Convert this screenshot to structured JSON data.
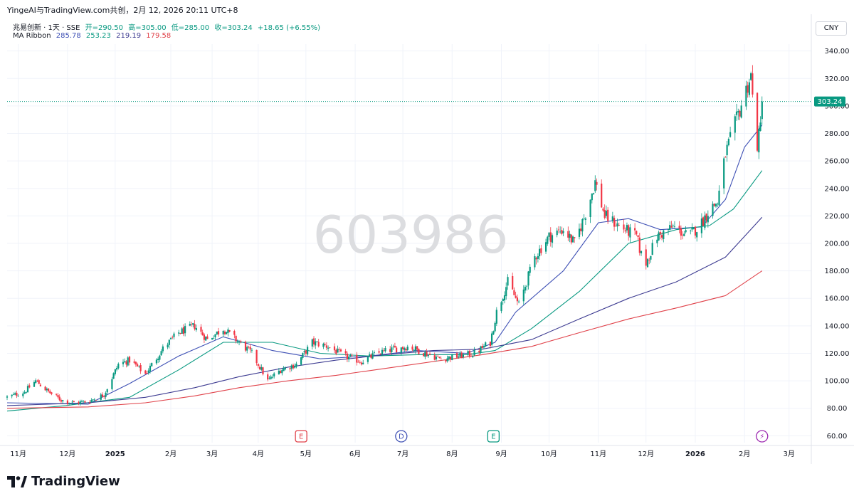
{
  "header": {
    "title": "YingeAI与TradingView.com共创，2月 12, 2026 20:11 UTC+8"
  },
  "symbol": {
    "name": "兆易创新 · 1天 · SSE",
    "open_label": "开=290.50",
    "high_label": "高=305.00",
    "low_label": "低=285.00",
    "close_label": "收=303.24",
    "change_label": "+18.65 (+6.55%)"
  },
  "ma_ribbon": {
    "label": "MA Ribbon",
    "values": [
      "285.78",
      "253.23",
      "219.19",
      "179.58"
    ],
    "colors": [
      "#3f51b5",
      "#089981",
      "#3d3b91",
      "#e0424a"
    ]
  },
  "currency": "CNY",
  "watermark": "603986",
  "price_tag": "303.24",
  "footer": {
    "brand": "TradingView"
  },
  "colors": {
    "up": "#089981",
    "down": "#f23645",
    "grid": "#f0f3fa",
    "tag": "#089981"
  },
  "event_markers": [
    {
      "letter": "E",
      "date": "2025-04-28",
      "color": "#e0424a",
      "shape": "square"
    },
    {
      "letter": "D",
      "date": "2025-06-30",
      "color": "#3f51b5",
      "shape": "circle"
    },
    {
      "letter": "E",
      "date": "2025-08-27",
      "color": "#089981",
      "shape": "square"
    },
    {
      "letter": "⚡",
      "date": "2026-02-12",
      "color": "#9c27b0",
      "shape": "circle"
    }
  ],
  "chart_data": {
    "type": "candlestick",
    "x_axis": {
      "start": "2024-10-25",
      "end": "2026-03-15",
      "tick_labels": [
        {
          "date": "2024-11-01",
          "label": "11月"
        },
        {
          "date": "2024-12-02",
          "label": "12月"
        },
        {
          "date": "2025-01-01",
          "label": "2025",
          "bold": true
        },
        {
          "date": "2025-02-05",
          "label": "2月"
        },
        {
          "date": "2025-03-03",
          "label": "3月"
        },
        {
          "date": "2025-04-01",
          "label": "4月"
        },
        {
          "date": "2025-05-01",
          "label": "5月"
        },
        {
          "date": "2025-06-01",
          "label": "6月"
        },
        {
          "date": "2025-07-01",
          "label": "7月"
        },
        {
          "date": "2025-08-01",
          "label": "8月"
        },
        {
          "date": "2025-09-01",
          "label": "9月"
        },
        {
          "date": "2025-10-01",
          "label": "10月"
        },
        {
          "date": "2025-11-01",
          "label": "11月"
        },
        {
          "date": "2025-12-01",
          "label": "12月"
        },
        {
          "date": "2026-01-01",
          "label": "2026",
          "bold": true
        },
        {
          "date": "2026-02-01",
          "label": "2月"
        },
        {
          "date": "2026-03-01",
          "label": "3月"
        }
      ]
    },
    "y_axis": {
      "min": 55,
      "max": 345,
      "ticks": [
        "60.00",
        "80.00",
        "100.00",
        "120.00",
        "140.00",
        "160.00",
        "180.00",
        "200.00",
        "220.00",
        "240.00",
        "260.00",
        "280.00",
        "300.00",
        "320.00",
        "340.00"
      ]
    },
    "current_price": 303.24,
    "close_series": [
      [
        "2024-10-25",
        88
      ],
      [
        "2024-11-05",
        92
      ],
      [
        "2024-11-12",
        100
      ],
      [
        "2024-11-20",
        92
      ],
      [
        "2024-11-28",
        86
      ],
      [
        "2024-12-05",
        84
      ],
      [
        "2024-12-15",
        85
      ],
      [
        "2024-12-25",
        90
      ],
      [
        "2025-01-03",
        112
      ],
      [
        "2025-01-10",
        115
      ],
      [
        "2025-01-20",
        105
      ],
      [
        "2025-02-01",
        125
      ],
      [
        "2025-02-10",
        135
      ],
      [
        "2025-02-20",
        140
      ],
      [
        "2025-02-28",
        130
      ],
      [
        "2025-03-10",
        138
      ],
      [
        "2025-03-20",
        128
      ],
      [
        "2025-03-28",
        120
      ],
      [
        "2025-04-07",
        100
      ],
      [
        "2025-04-15",
        108
      ],
      [
        "2025-04-25",
        112
      ],
      [
        "2025-05-05",
        128
      ],
      [
        "2025-05-15",
        125
      ],
      [
        "2025-05-25",
        118
      ],
      [
        "2025-06-05",
        114
      ],
      [
        "2025-06-15",
        120
      ],
      [
        "2025-06-25",
        123
      ],
      [
        "2025-07-05",
        125
      ],
      [
        "2025-07-15",
        120
      ],
      [
        "2025-07-25",
        116
      ],
      [
        "2025-08-05",
        118
      ],
      [
        "2025-08-15",
        120
      ],
      [
        "2025-08-25",
        128
      ],
      [
        "2025-08-29",
        150
      ],
      [
        "2025-09-05",
        172
      ],
      [
        "2025-09-12",
        155
      ],
      [
        "2025-09-22",
        190
      ],
      [
        "2025-10-01",
        205
      ],
      [
        "2025-10-10",
        210
      ],
      [
        "2025-10-17",
        200
      ],
      [
        "2025-10-25",
        225
      ],
      [
        "2025-10-30",
        245
      ],
      [
        "2025-11-05",
        220
      ],
      [
        "2025-11-15",
        212
      ],
      [
        "2025-11-25",
        205
      ],
      [
        "2025-11-30",
        183
      ],
      [
        "2025-12-08",
        205
      ],
      [
        "2025-12-18",
        212
      ],
      [
        "2025-12-28",
        205
      ],
      [
        "2026-01-05",
        215
      ],
      [
        "2026-01-10",
        225
      ],
      [
        "2026-01-15",
        230
      ],
      [
        "2026-01-20",
        265
      ],
      [
        "2026-01-27",
        290
      ],
      [
        "2026-02-02",
        312
      ],
      [
        "2026-02-05",
        322
      ],
      [
        "2026-02-07",
        290
      ],
      [
        "2026-02-09",
        272
      ],
      [
        "2026-02-10",
        278
      ],
      [
        "2026-02-11",
        285
      ],
      [
        "2026-02-12",
        303
      ]
    ],
    "ma_lines": [
      {
        "value_label": "285.78",
        "color": "#3f51b5",
        "points": [
          [
            "2024-10-25",
            84
          ],
          [
            "2024-12-15",
            83
          ],
          [
            "2025-01-10",
            98
          ],
          [
            "2025-02-10",
            118
          ],
          [
            "2025-03-10",
            132
          ],
          [
            "2025-04-10",
            122
          ],
          [
            "2025-05-10",
            116
          ],
          [
            "2025-06-10",
            118
          ],
          [
            "2025-07-10",
            122
          ],
          [
            "2025-08-10",
            120
          ],
          [
            "2025-08-28",
            128
          ],
          [
            "2025-09-10",
            150
          ],
          [
            "2025-10-10",
            180
          ],
          [
            "2025-11-01",
            215
          ],
          [
            "2025-11-20",
            218
          ],
          [
            "2025-12-10",
            210
          ],
          [
            "2026-01-05",
            212
          ],
          [
            "2026-01-20",
            232
          ],
          [
            "2026-02-01",
            270
          ],
          [
            "2026-02-12",
            286
          ]
        ]
      },
      {
        "value_label": "253.23",
        "color": "#089981",
        "points": [
          [
            "2024-10-25",
            78
          ],
          [
            "2024-12-01",
            82
          ],
          [
            "2025-01-10",
            88
          ],
          [
            "2025-02-10",
            108
          ],
          [
            "2025-03-10",
            128
          ],
          [
            "2025-04-10",
            128
          ],
          [
            "2025-05-10",
            120
          ],
          [
            "2025-06-10",
            118
          ],
          [
            "2025-07-10",
            119
          ],
          [
            "2025-08-10",
            119
          ],
          [
            "2025-08-28",
            122
          ],
          [
            "2025-09-20",
            138
          ],
          [
            "2025-10-20",
            165
          ],
          [
            "2025-11-20",
            200
          ],
          [
            "2025-12-20",
            210
          ],
          [
            "2026-01-10",
            213
          ],
          [
            "2026-01-25",
            225
          ],
          [
            "2026-02-12",
            253
          ]
        ]
      },
      {
        "value_label": "219.19",
        "color": "#3d3b91",
        "points": [
          [
            "2024-10-25",
            82
          ],
          [
            "2024-12-15",
            84
          ],
          [
            "2025-01-20",
            88
          ],
          [
            "2025-02-20",
            95
          ],
          [
            "2025-03-20",
            103
          ],
          [
            "2025-04-20",
            110
          ],
          [
            "2025-05-20",
            115
          ],
          [
            "2025-06-20",
            119
          ],
          [
            "2025-07-20",
            122
          ],
          [
            "2025-08-20",
            123
          ],
          [
            "2025-09-20",
            130
          ],
          [
            "2025-10-20",
            145
          ],
          [
            "2025-11-20",
            160
          ],
          [
            "2025-12-20",
            172
          ],
          [
            "2026-01-20",
            190
          ],
          [
            "2026-02-12",
            219
          ]
        ]
      },
      {
        "value_label": "179.58",
        "color": "#e0424a",
        "points": [
          [
            "2024-10-25",
            80
          ],
          [
            "2024-12-15",
            81
          ],
          [
            "2025-01-20",
            84
          ],
          [
            "2025-02-20",
            89
          ],
          [
            "2025-03-20",
            95
          ],
          [
            "2025-04-20",
            100
          ],
          [
            "2025-05-20",
            104
          ],
          [
            "2025-06-20",
            109
          ],
          [
            "2025-07-20",
            114
          ],
          [
            "2025-08-20",
            119
          ],
          [
            "2025-09-20",
            125
          ],
          [
            "2025-10-20",
            135
          ],
          [
            "2025-11-20",
            145
          ],
          [
            "2025-12-20",
            153
          ],
          [
            "2026-01-20",
            162
          ],
          [
            "2026-02-12",
            180
          ]
        ]
      }
    ]
  }
}
